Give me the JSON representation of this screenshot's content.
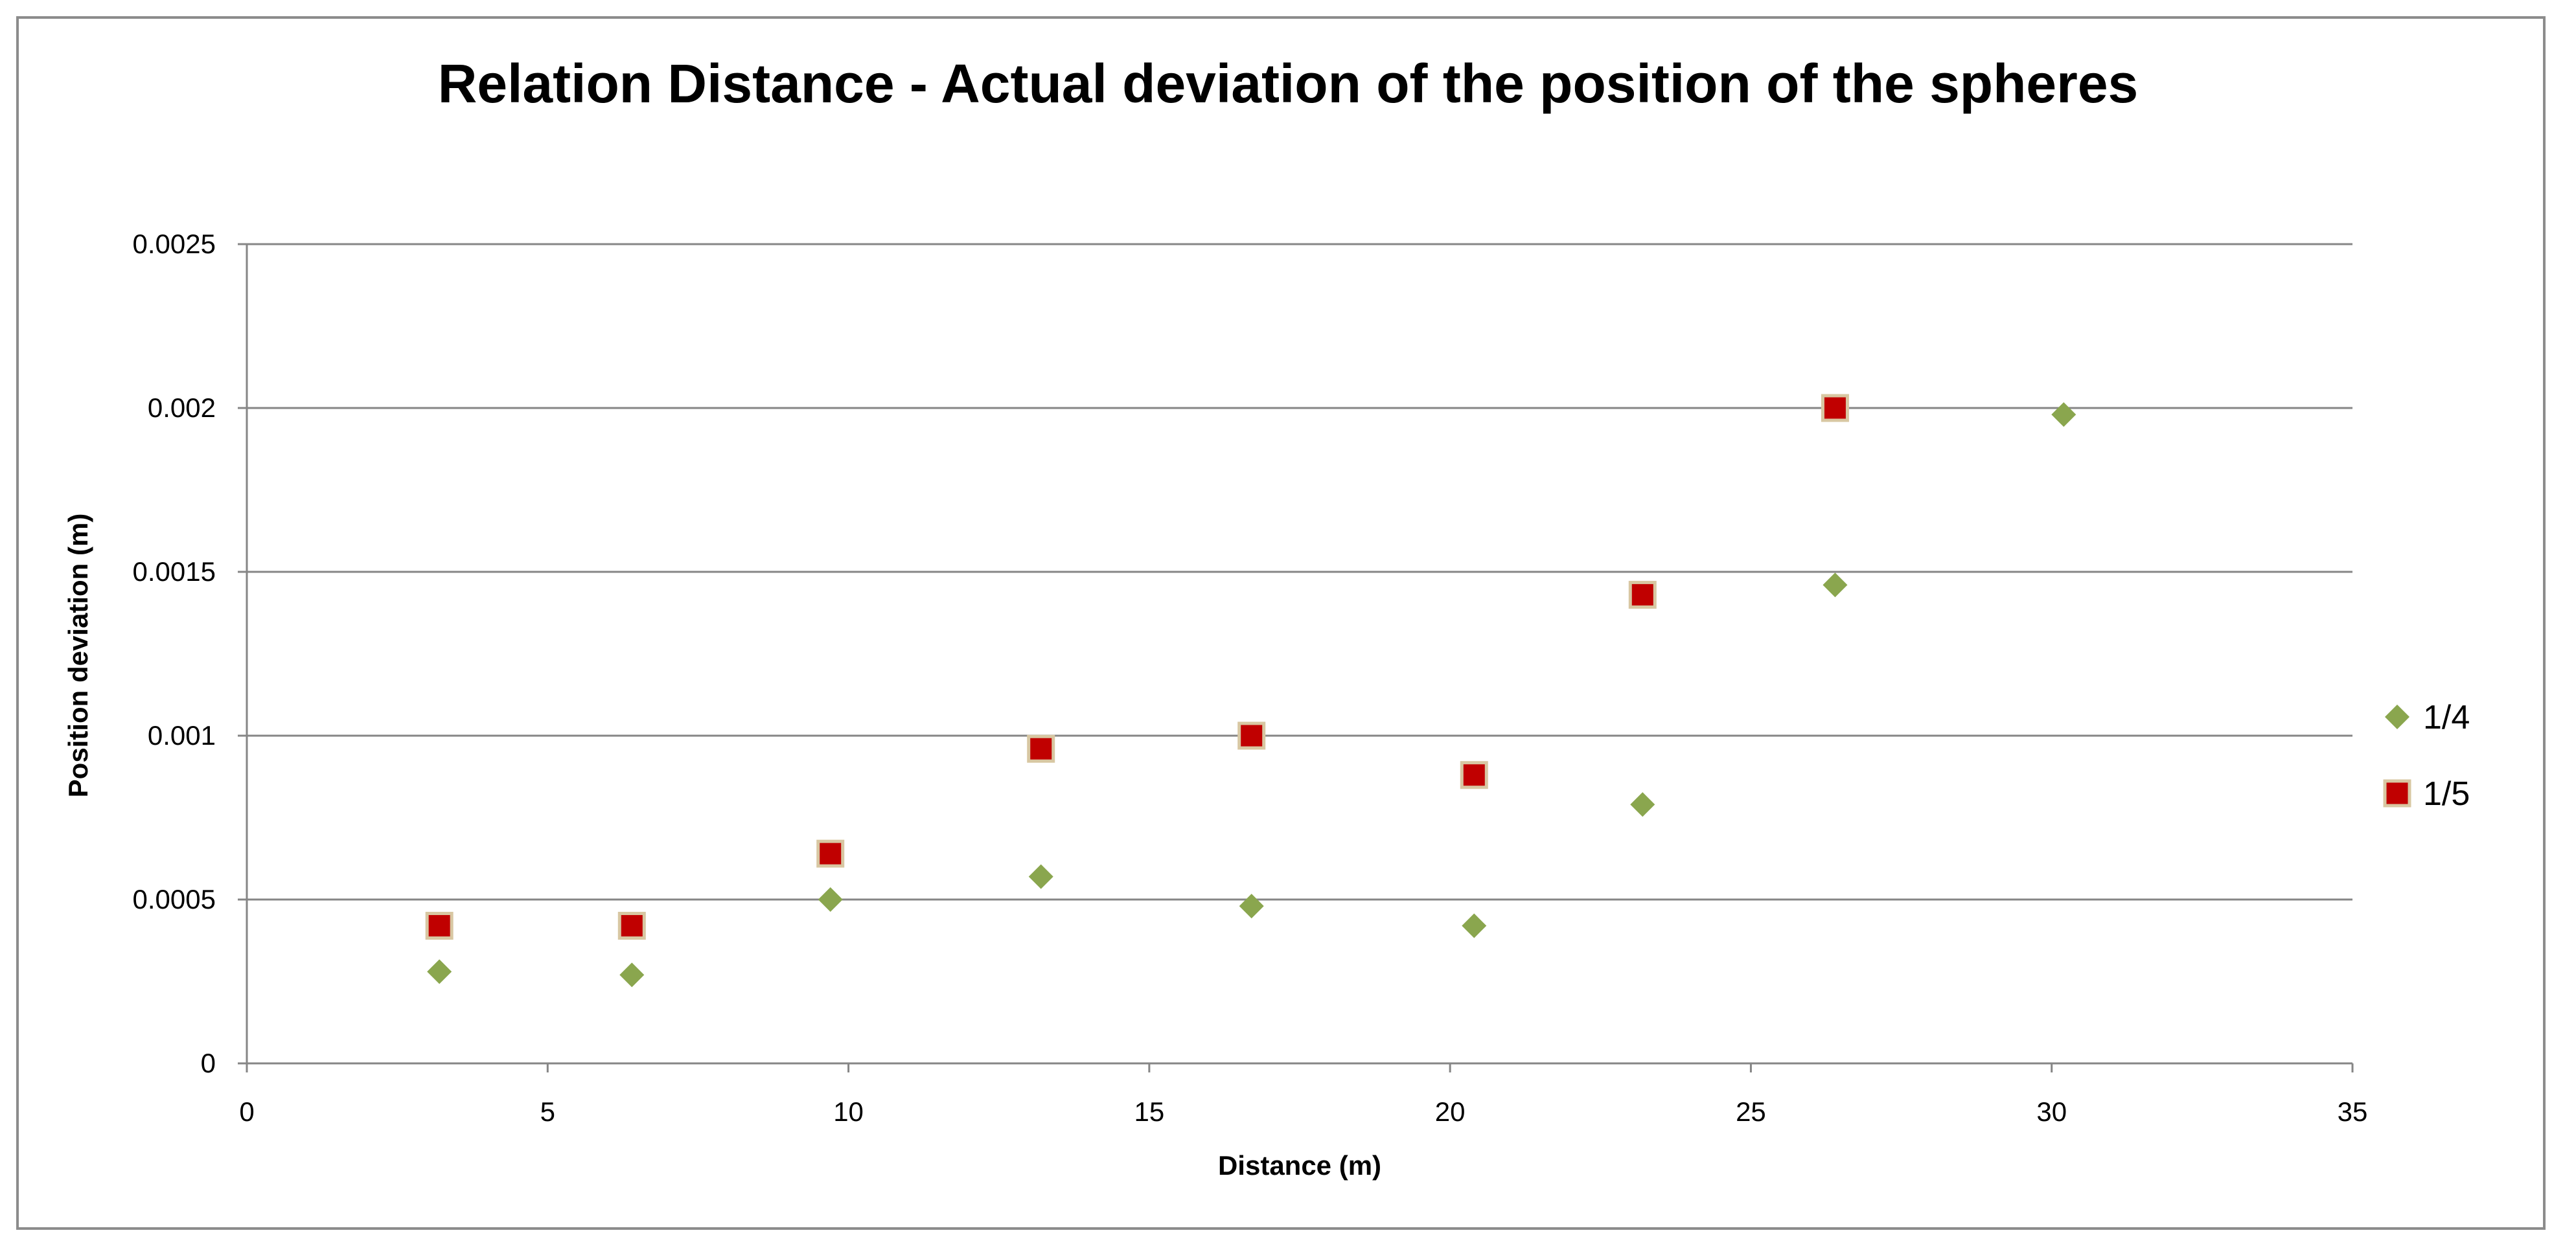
{
  "chart_data": {
    "type": "scatter",
    "title": "Relation Distance - Actual deviation of the position of the spheres",
    "xlabel": "Distance (m)",
    "ylabel": "Position deviation (m)",
    "xlim": [
      0,
      35
    ],
    "ylim": [
      0,
      0.0025
    ],
    "xticks": [
      0,
      5,
      10,
      15,
      20,
      25,
      30,
      35
    ],
    "xtick_labels": [
      "0",
      "5",
      "10",
      "15",
      "20",
      "25",
      "30",
      "35"
    ],
    "yticks": [
      0,
      0.0005,
      0.001,
      0.0015,
      0.002,
      0.0025
    ],
    "ytick_labels": [
      "0",
      "0.0005",
      "0.001",
      "0.0015",
      "0.002",
      "0.0025"
    ],
    "grid": "horizontal",
    "legend_position": "right",
    "series": [
      {
        "name": "1/4",
        "marker": "diamond",
        "color": "#8aa64e",
        "x": [
          3.2,
          6.4,
          9.7,
          13.2,
          16.7,
          20.4,
          23.2,
          26.4,
          30.2
        ],
        "y": [
          0.00028,
          0.00027,
          0.0005,
          0.00057,
          0.00048,
          0.00042,
          0.00079,
          0.00146,
          0.00198
        ]
      },
      {
        "name": "1/5",
        "marker": "square",
        "color": "#c00000",
        "edge_color": "#d8c7a2",
        "x": [
          3.2,
          6.4,
          9.7,
          13.2,
          16.7,
          20.4,
          23.2,
          26.4
        ],
        "y": [
          0.00042,
          0.00042,
          0.00064,
          0.00096,
          0.001,
          0.00088,
          0.00143,
          0.002
        ]
      }
    ]
  }
}
